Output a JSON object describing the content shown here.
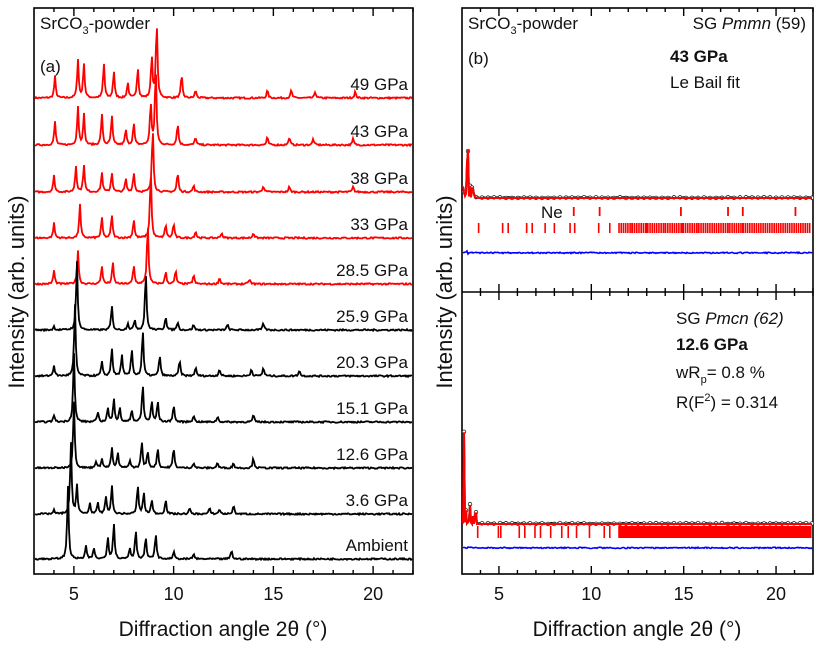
{
  "figure": {
    "ylabel": "Intensity (arb. units)",
    "xlabel": "Diffraction angle 2θ (°)"
  },
  "chart_data": [
    {
      "type": "line",
      "panel": "(a)",
      "sample_label": "SrCO",
      "sample_sub": "3",
      "sample_suffix": "-powder",
      "xlabel": "Diffraction angle 2θ (°)",
      "ylabel": "Intensity (arb. units)",
      "xlim": [
        3,
        22
      ],
      "xticks": [
        5,
        10,
        15,
        20
      ],
      "grid": false,
      "colors": {
        "high_pressure": "#ff0000",
        "low_pressure": "#000000"
      },
      "series": [
        {
          "name": "49 GPa",
          "color": "#ff0000",
          "peaks": [
            [
              4.05,
              0.28
            ],
            [
              5.2,
              0.5
            ],
            [
              5.5,
              0.45
            ],
            [
              6.5,
              0.45
            ],
            [
              7.0,
              0.35
            ],
            [
              7.7,
              0.2
            ],
            [
              8.2,
              0.4
            ],
            [
              8.9,
              0.55
            ],
            [
              9.15,
              1.0
            ],
            [
              10.4,
              0.3
            ],
            [
              11.1,
              0.1
            ],
            [
              14.7,
              0.1
            ],
            [
              15.9,
              0.1
            ],
            [
              17.1,
              0.08
            ],
            [
              19.1,
              0.08
            ]
          ]
        },
        {
          "name": "43 GPa",
          "color": "#ff0000",
          "peaks": [
            [
              4.05,
              0.3
            ],
            [
              5.2,
              0.5
            ],
            [
              5.5,
              0.4
            ],
            [
              6.4,
              0.4
            ],
            [
              6.9,
              0.38
            ],
            [
              7.6,
              0.2
            ],
            [
              8.0,
              0.28
            ],
            [
              8.85,
              0.55
            ],
            [
              9.1,
              1.0
            ],
            [
              10.2,
              0.28
            ],
            [
              11.1,
              0.1
            ],
            [
              14.7,
              0.1
            ],
            [
              15.8,
              0.1
            ],
            [
              17.0,
              0.08
            ],
            [
              19.0,
              0.08
            ]
          ]
        },
        {
          "name": "38 GPa",
          "color": "#ff0000",
          "peaks": [
            [
              4.0,
              0.25
            ],
            [
              5.1,
              0.4
            ],
            [
              5.5,
              0.42
            ],
            [
              6.4,
              0.3
            ],
            [
              6.9,
              0.3
            ],
            [
              7.6,
              0.2
            ],
            [
              8.0,
              0.3
            ],
            [
              8.95,
              1.0
            ],
            [
              10.2,
              0.3
            ],
            [
              11.0,
              0.1
            ],
            [
              14.5,
              0.1
            ],
            [
              15.8,
              0.08
            ],
            [
              19.0,
              0.08
            ]
          ]
        },
        {
          "name": "33 GPa",
          "color": "#ff0000",
          "peaks": [
            [
              4.0,
              0.22
            ],
            [
              5.3,
              0.5
            ],
            [
              6.4,
              0.3
            ],
            [
              6.9,
              0.35
            ],
            [
              8.0,
              0.28
            ],
            [
              8.85,
              1.0
            ],
            [
              9.6,
              0.2
            ],
            [
              10.0,
              0.22
            ],
            [
              11.1,
              0.1
            ],
            [
              12.4,
              0.08
            ],
            [
              14.0,
              0.08
            ]
          ]
        },
        {
          "name": "28.5 GPa",
          "color": "#ff0000",
          "peaks": [
            [
              4.0,
              0.22
            ],
            [
              5.2,
              0.55
            ],
            [
              6.4,
              0.3
            ],
            [
              6.95,
              0.35
            ],
            [
              8.0,
              0.3
            ],
            [
              8.7,
              1.0
            ],
            [
              9.6,
              0.2
            ],
            [
              10.1,
              0.22
            ],
            [
              11.0,
              0.15
            ],
            [
              12.3,
              0.1
            ],
            [
              13.8,
              0.08
            ]
          ]
        },
        {
          "name": "25.9 GPa",
          "color": "#000000",
          "peaks": [
            [
              4.0,
              0.05
            ],
            [
              5.15,
              1.0
            ],
            [
              6.9,
              0.35
            ],
            [
              7.7,
              0.1
            ],
            [
              8.05,
              0.15
            ],
            [
              8.6,
              0.85
            ],
            [
              9.6,
              0.2
            ],
            [
              10.2,
              0.12
            ],
            [
              11.0,
              0.08
            ],
            [
              12.7,
              0.08
            ],
            [
              14.5,
              0.1
            ]
          ]
        },
        {
          "name": "20.3 GPa",
          "color": "#000000",
          "peaks": [
            [
              4.0,
              0.15
            ],
            [
              5.05,
              1.0
            ],
            [
              6.4,
              0.2
            ],
            [
              6.9,
              0.4
            ],
            [
              7.4,
              0.3
            ],
            [
              7.9,
              0.38
            ],
            [
              8.45,
              0.65
            ],
            [
              9.3,
              0.3
            ],
            [
              10.3,
              0.22
            ],
            [
              11.1,
              0.12
            ],
            [
              12.3,
              0.1
            ],
            [
              13.9,
              0.1
            ],
            [
              14.5,
              0.12
            ],
            [
              16.3,
              0.08
            ]
          ]
        },
        {
          "name": "15.1 GPa",
          "color": "#000000",
          "peaks": [
            [
              4.0,
              0.1
            ],
            [
              5.0,
              1.0
            ],
            [
              6.2,
              0.15
            ],
            [
              6.7,
              0.2
            ],
            [
              7.0,
              0.35
            ],
            [
              7.3,
              0.2
            ],
            [
              7.9,
              0.18
            ],
            [
              8.45,
              0.55
            ],
            [
              8.9,
              0.3
            ],
            [
              9.2,
              0.3
            ],
            [
              10.0,
              0.25
            ],
            [
              11.0,
              0.1
            ],
            [
              12.2,
              0.08
            ],
            [
              14.0,
              0.1
            ]
          ]
        },
        {
          "name": "12.6 GPa",
          "color": "#000000",
          "peaks": [
            [
              5.0,
              1.0
            ],
            [
              6.1,
              0.1
            ],
            [
              6.4,
              0.15
            ],
            [
              6.9,
              0.3
            ],
            [
              7.2,
              0.22
            ],
            [
              7.8,
              0.12
            ],
            [
              8.4,
              0.4
            ],
            [
              8.7,
              0.25
            ],
            [
              9.2,
              0.3
            ],
            [
              10.0,
              0.3
            ],
            [
              11.0,
              0.08
            ],
            [
              12.2,
              0.08
            ],
            [
              13.0,
              0.07
            ],
            [
              14.0,
              0.15
            ]
          ]
        },
        {
          "name": "3.6 GPa",
          "color": "#000000",
          "peaks": [
            [
              4.0,
              0.05
            ],
            [
              4.85,
              1.0
            ],
            [
              5.15,
              0.4
            ],
            [
              5.8,
              0.15
            ],
            [
              6.2,
              0.15
            ],
            [
              6.6,
              0.25
            ],
            [
              6.9,
              0.4
            ],
            [
              8.2,
              0.4
            ],
            [
              8.5,
              0.3
            ],
            [
              8.9,
              0.2
            ],
            [
              9.6,
              0.2
            ],
            [
              10.8,
              0.08
            ],
            [
              11.8,
              0.08
            ],
            [
              12.3,
              0.07
            ],
            [
              13.0,
              0.12
            ]
          ]
        },
        {
          "name": "Ambient",
          "color": "#000000",
          "peaks": [
            [
              4.7,
              1.0
            ],
            [
              5.6,
              0.18
            ],
            [
              6.0,
              0.15
            ],
            [
              6.7,
              0.3
            ],
            [
              7.0,
              0.5
            ],
            [
              7.8,
              0.15
            ],
            [
              8.1,
              0.4
            ],
            [
              8.6,
              0.3
            ],
            [
              9.1,
              0.35
            ],
            [
              10.0,
              0.1
            ],
            [
              11.0,
              0.07
            ],
            [
              12.9,
              0.12
            ]
          ]
        }
      ]
    },
    {
      "type": "line",
      "panel": "(b)",
      "subpanel": "top",
      "sample_label": "SrCO",
      "sample_sub": "3",
      "sample_suffix": "-powder",
      "space_group_prefix": "SG ",
      "space_group_italic": "Pmmn",
      "space_group_number": " (59)",
      "pressure": "43 GPa",
      "method": "Le Bail fit",
      "phase_marker_label": "Ne",
      "xlim": [
        3,
        22
      ],
      "xticks": [
        5,
        10,
        15,
        20
      ],
      "series": [
        {
          "name": "observed",
          "style": "open-circles",
          "color": "#000000"
        },
        {
          "name": "calculated",
          "style": "line",
          "color": "#ff0000"
        },
        {
          "name": "difference",
          "style": "line",
          "color": "#0000ff"
        },
        {
          "name": "reflections",
          "style": "ticks",
          "color": "#ff0000"
        },
        {
          "name": "Ne reflections",
          "style": "ticks",
          "color": "#ff0000",
          "positions": [
            9.05,
            10.45,
            14.85,
            17.4,
            18.2,
            21.05
          ]
        }
      ],
      "peaks": [
        [
          3.9,
          0.3
        ],
        [
          5.2,
          0.42
        ],
        [
          5.5,
          0.45
        ],
        [
          6.5,
          0.3
        ],
        [
          6.8,
          0.28
        ],
        [
          7.5,
          0.12
        ],
        [
          8.0,
          0.2
        ],
        [
          8.85,
          0.55
        ],
        [
          9.1,
          1.0
        ],
        [
          10.4,
          0.21
        ],
        [
          11.0,
          0.07
        ],
        [
          12.2,
          0.04
        ],
        [
          13.0,
          0.06
        ],
        [
          14.0,
          0.06
        ],
        [
          14.9,
          0.08
        ],
        [
          15.8,
          0.05
        ],
        [
          16.3,
          0.04
        ],
        [
          17.4,
          0.06
        ],
        [
          18.2,
          0.03
        ]
      ]
    },
    {
      "type": "line",
      "panel": "(b)",
      "subpanel": "bottom",
      "space_group_prefix": "SG ",
      "space_group_italic": "Pmcn (62)",
      "pressure": "12.6 GPa",
      "wrp_label": "wR",
      "wrp_sub": "p",
      "wrp_value": "= 0.8 %",
      "rf2_prefix": "R(F",
      "rf2_sup": "2",
      "rf2_value": ") = 0.314",
      "xlim": [
        3,
        22
      ],
      "xticks": [
        5,
        10,
        15,
        20
      ],
      "xticklabels": [
        "5",
        "10",
        "15",
        "20"
      ],
      "series": [
        {
          "name": "observed",
          "style": "open-circles",
          "color": "#000000"
        },
        {
          "name": "calculated",
          "style": "line",
          "color": "#ff0000"
        },
        {
          "name": "difference",
          "style": "line",
          "color": "#0000ff"
        },
        {
          "name": "reflections",
          "style": "ticks",
          "color": "#ff0000"
        }
      ],
      "peaks": [
        [
          3.85,
          0.06
        ],
        [
          4.97,
          1.0
        ],
        [
          5.1,
          0.45
        ],
        [
          6.1,
          0.1
        ],
        [
          6.4,
          0.12
        ],
        [
          6.95,
          0.31
        ],
        [
          7.25,
          0.23
        ],
        [
          7.8,
          0.1
        ],
        [
          8.4,
          0.36
        ],
        [
          8.75,
          0.17
        ],
        [
          9.2,
          0.3
        ],
        [
          9.9,
          0.24
        ],
        [
          10.7,
          0.08
        ],
        [
          11.0,
          0.09
        ],
        [
          12.1,
          0.1
        ],
        [
          12.8,
          0.05
        ],
        [
          13.3,
          0.06
        ],
        [
          13.95,
          0.18
        ],
        [
          14.6,
          0.04
        ],
        [
          15.2,
          0.04
        ],
        [
          16.0,
          0.05
        ],
        [
          17.0,
          0.05
        ],
        [
          17.3,
          0.04
        ],
        [
          18.5,
          0.03
        ],
        [
          19.5,
          0.03
        ],
        [
          21.3,
          0.02
        ]
      ]
    }
  ]
}
